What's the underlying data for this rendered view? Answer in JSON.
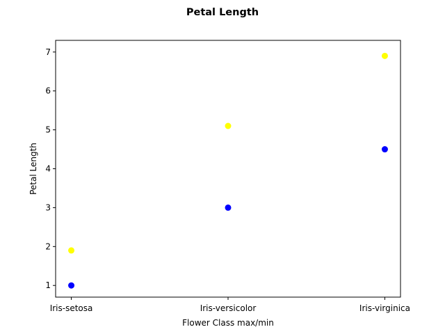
{
  "chart_data": {
    "type": "scatter",
    "title": "Petal Length",
    "xlabel": "Flower Class max/min",
    "ylabel": "Petal Length",
    "categories": [
      "Iris-setosa",
      "Iris-versicolor",
      "Iris-virginica"
    ],
    "ylim": [
      0.7,
      7.3
    ],
    "yticks": [
      1,
      2,
      3,
      4,
      5,
      6,
      7
    ],
    "grid": false,
    "legend": "none",
    "series": [
      {
        "color": "#ffff00",
        "values": [
          1.9,
          5.1,
          6.9
        ]
      },
      {
        "color": "#0000ff",
        "values": [
          1.0,
          3.0,
          4.5
        ]
      }
    ]
  }
}
